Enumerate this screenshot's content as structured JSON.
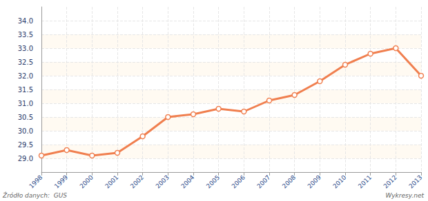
{
  "chart_data": {
    "type": "line",
    "categories": [
      "1998",
      "1999",
      "2000",
      "2001",
      "2002",
      "2003",
      "2004",
      "2005",
      "2006",
      "2007",
      "2008",
      "2009",
      "2010",
      "2011",
      "2012",
      "2013"
    ],
    "values": [
      29.1,
      29.3,
      29.1,
      29.2,
      29.8,
      30.5,
      30.6,
      30.8,
      30.7,
      31.1,
      31.3,
      31.8,
      32.4,
      32.8,
      33.0,
      32.0
    ],
    "color": "#f07f4f",
    "marker": "circle",
    "ylim": [
      28.5,
      34.5
    ],
    "yticks": [
      {
        "value": 29,
        "label": "29.0"
      },
      {
        "value": 29.5,
        "label": "29.5"
      },
      {
        "value": 30,
        "label": "30.0"
      },
      {
        "value": 30.5,
        "label": "30.5"
      },
      {
        "value": 31,
        "label": "31.0"
      },
      {
        "value": 31.5,
        "label": "31.5"
      },
      {
        "value": 32,
        "label": "32.0"
      },
      {
        "value": 32.5,
        "label": "32.5"
      },
      {
        "value": 33,
        "label": "33.0"
      },
      {
        "value": 33.5,
        "label": "33.5"
      },
      {
        "value": 34,
        "label": "34.0"
      }
    ],
    "grid": true,
    "annotations": [
      "Źródło danych:  GUS",
      "Wykresy.net",
      "wykresy.net"
    ]
  }
}
